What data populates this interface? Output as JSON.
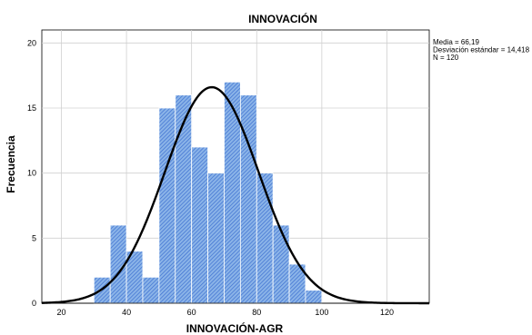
{
  "chart_data": {
    "type": "bar",
    "title": "INNOVACIÓN",
    "xlabel": "INNOVACIÓN-AGR",
    "ylabel": "Frecuencia",
    "bins": [
      {
        "start": 30,
        "end": 35,
        "count": 2
      },
      {
        "start": 35,
        "end": 40,
        "count": 6
      },
      {
        "start": 40,
        "end": 45,
        "count": 4
      },
      {
        "start": 45,
        "end": 50,
        "count": 2
      },
      {
        "start": 50,
        "end": 55,
        "count": 15
      },
      {
        "start": 55,
        "end": 60,
        "count": 16
      },
      {
        "start": 60,
        "end": 65,
        "count": 12
      },
      {
        "start": 65,
        "end": 70,
        "count": 10
      },
      {
        "start": 70,
        "end": 75,
        "count": 17
      },
      {
        "start": 75,
        "end": 80,
        "count": 16
      },
      {
        "start": 80,
        "end": 85,
        "count": 10
      },
      {
        "start": 85,
        "end": 90,
        "count": 6
      },
      {
        "start": 90,
        "end": 95,
        "count": 3
      },
      {
        "start": 95,
        "end": 100,
        "count": 1
      }
    ],
    "x_ticks": [
      20,
      40,
      60,
      80,
      100,
      120
    ],
    "y_ticks": [
      0,
      5,
      10,
      15,
      20
    ],
    "xlim": [
      14,
      133
    ],
    "ylim": [
      0,
      21
    ],
    "grid": true,
    "normal_curve": {
      "mean": 66.19,
      "sd": 14.418,
      "n": 120,
      "bin_width": 5
    },
    "stats_text": [
      "Media = 66,19",
      "Desviación estándar = 14,418",
      "N = 120"
    ],
    "colors": {
      "bar_fill": "#8bb4e8",
      "bar_stripe": "#3c6fd1",
      "curve": "#000000",
      "grid": "#d0d0d0"
    }
  }
}
